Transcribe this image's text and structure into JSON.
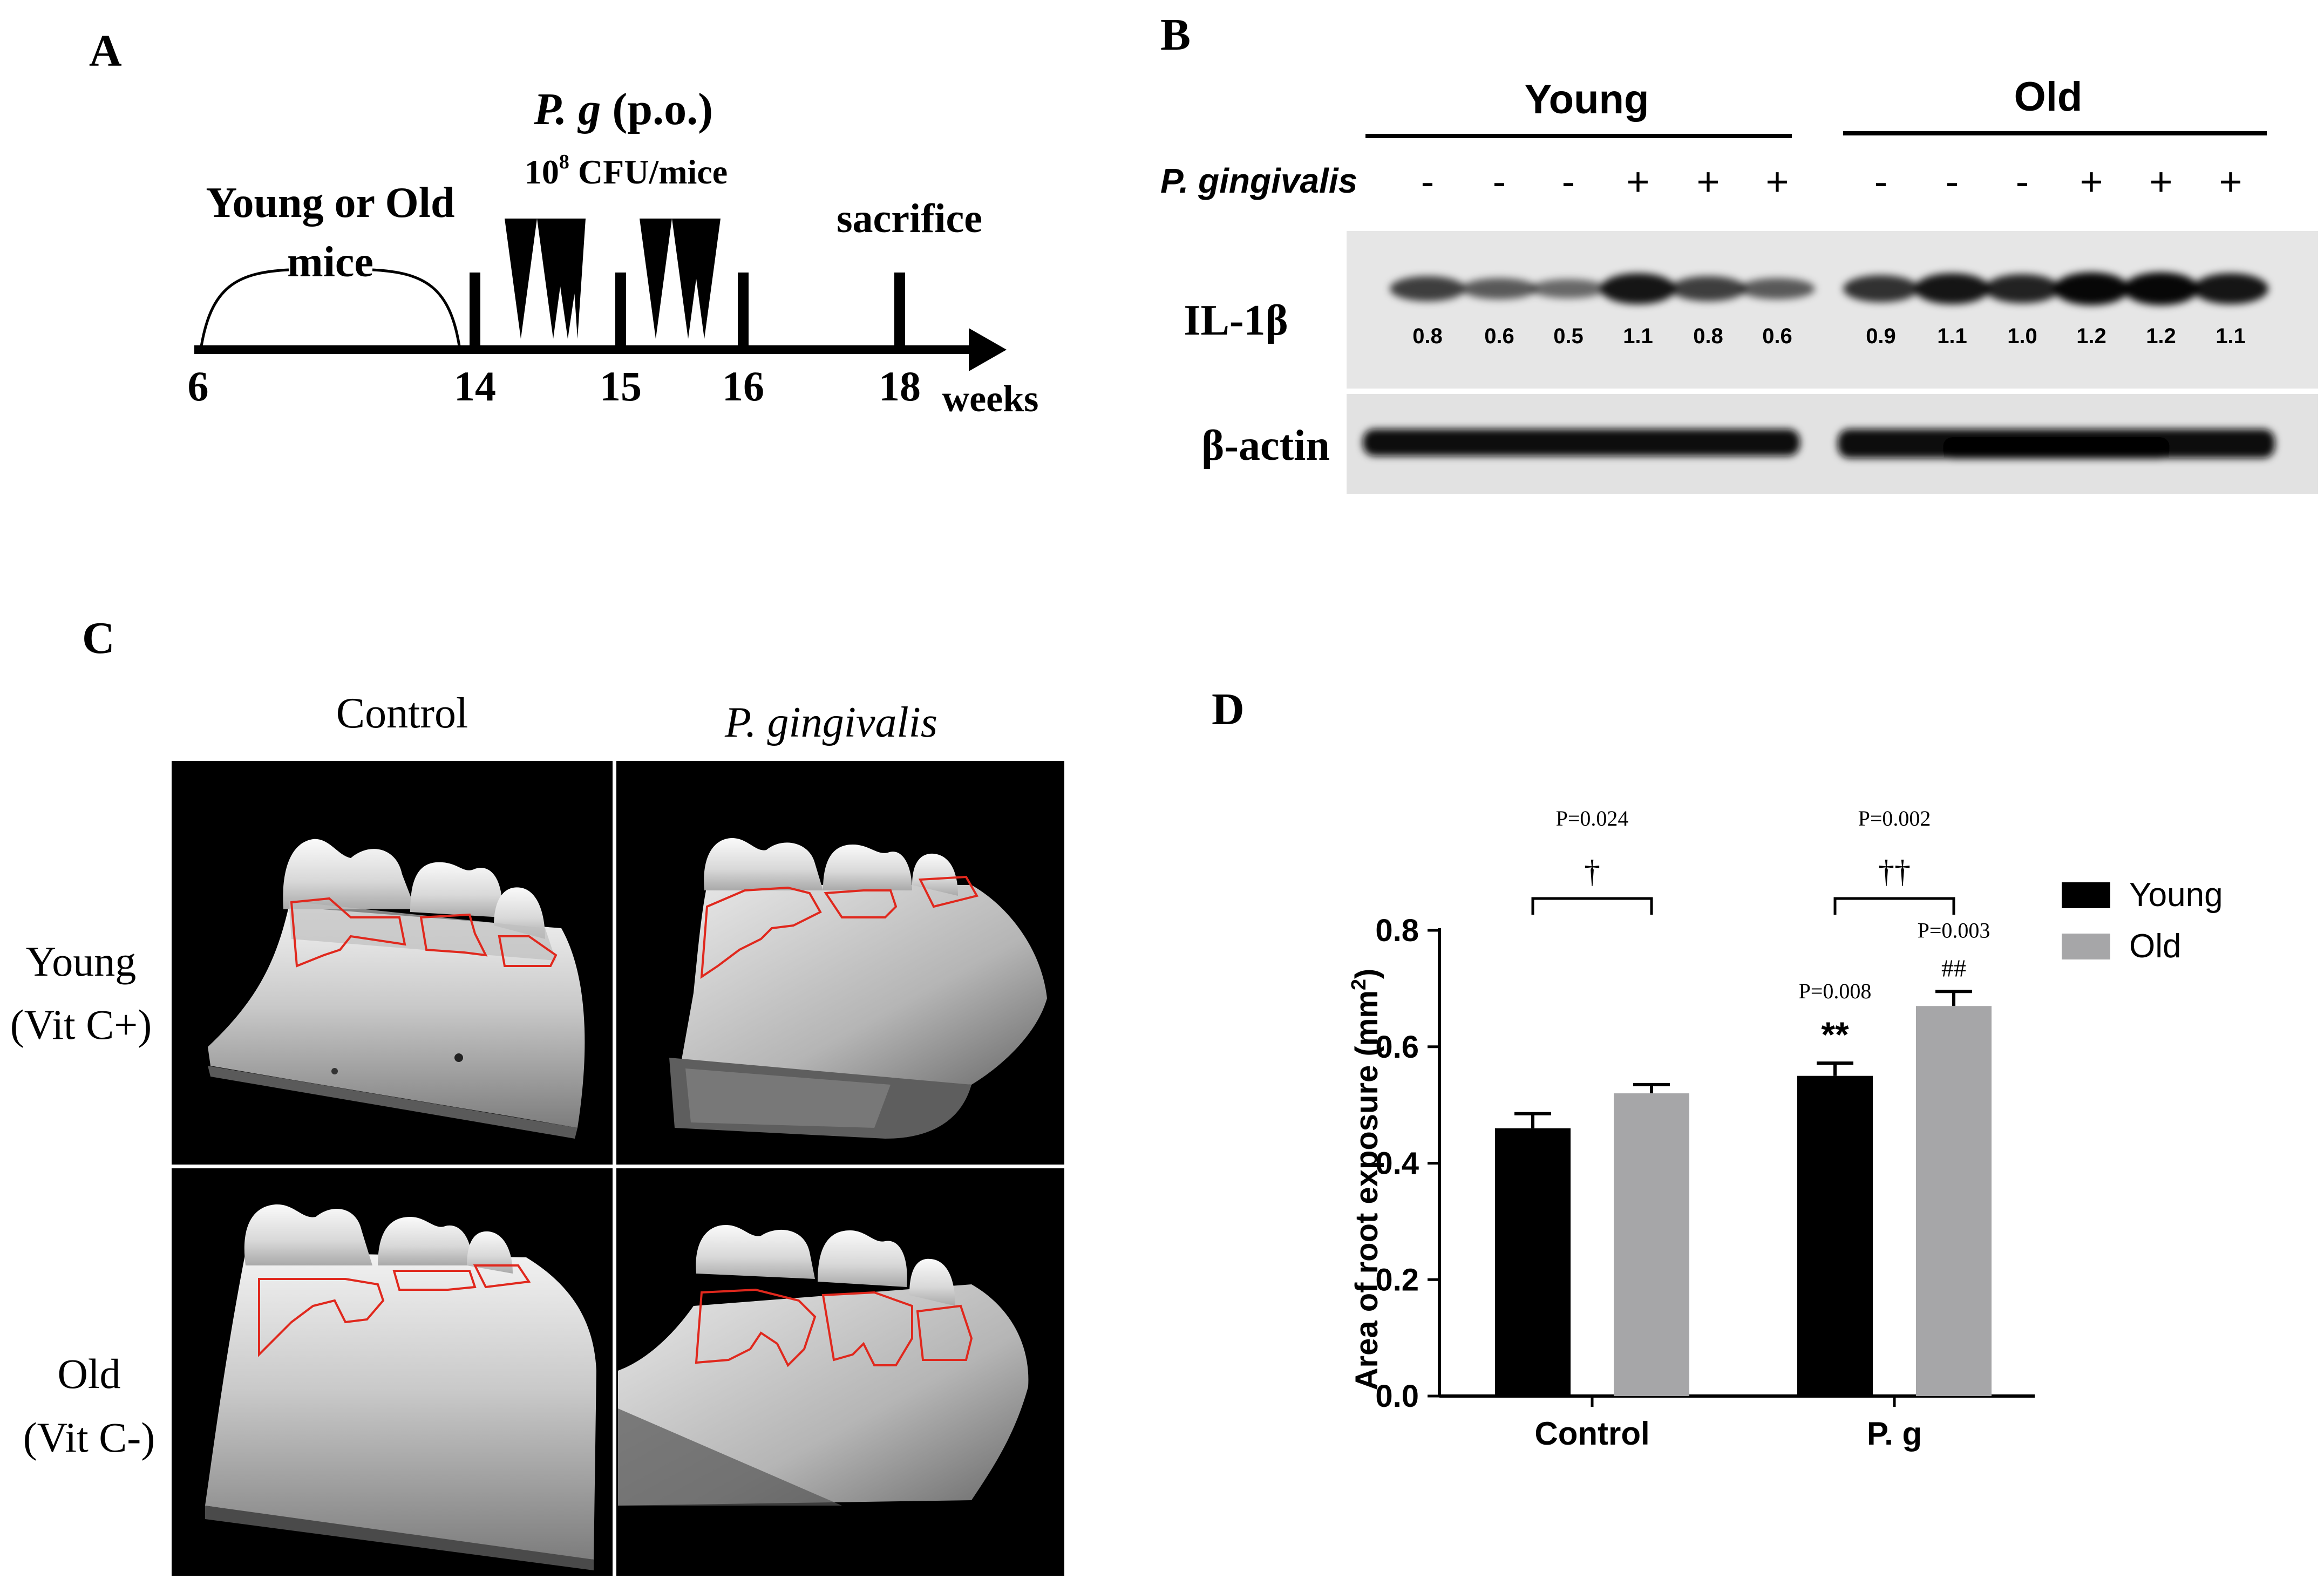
{
  "panel_a": {
    "letter": "A",
    "pg_italic": "P. g",
    "pg_route": "(p.o.)",
    "dose": "10",
    "dose_exp": "8",
    "dose_unit": "CFU/mice",
    "group_line1": "Young or Old",
    "group_line2": "mice",
    "sacrifice": "sacrifice",
    "ticks": [
      "6",
      "14",
      "15",
      "16",
      "18"
    ],
    "unit": "weeks"
  },
  "panel_b": {
    "letter": "B",
    "group_young": "Young",
    "group_old": "Old",
    "treatment_label": "P. gingivalis",
    "treatment_signs": [
      "-",
      "-",
      "-",
      "+",
      "+",
      "+",
      "-",
      "-",
      "-",
      "+",
      "+",
      "+"
    ],
    "bands": [
      {
        "label": "IL-1β",
        "values": [
          "0.8",
          "0.6",
          "0.5",
          "1.1",
          "0.8",
          "0.6",
          "0.9",
          "1.1",
          "1.0",
          "1.2",
          "1.2",
          "1.1"
        ]
      },
      {
        "label": "β-actin"
      }
    ]
  },
  "panel_c": {
    "letter": "C",
    "columns": [
      "Control",
      "P. gingivalis"
    ],
    "rows": [
      {
        "line1": "Young",
        "line2": "(Vit C+)"
      },
      {
        "line1": "Old",
        "line2": "(Vit C-)"
      }
    ]
  },
  "panel_d": {
    "letter": "D",
    "chart_data": {
      "type": "bar",
      "categories": [
        "Control",
        "P. g"
      ],
      "series": [
        {
          "name": "Young",
          "color": "#000000",
          "values": [
            0.46,
            0.55
          ],
          "errors": [
            0.025,
            0.022
          ]
        },
        {
          "name": "Old",
          "color": "#a6a6a8",
          "values": [
            0.52,
            0.67
          ],
          "errors": [
            0.015,
            0.025
          ]
        }
      ],
      "ylabel": "Area of root exposure (mm",
      "ylabel_sup": "2",
      "ylabel_end": ")",
      "ylim": [
        0,
        0.8
      ],
      "yticks": [
        "0.0",
        "0.2",
        "0.4",
        "0.6",
        "0.8"
      ],
      "legend_position": "right",
      "annotations": {
        "control_p": "P=0.024",
        "control_mark": "†",
        "pg_p": "P=0.002",
        "pg_mark": "††",
        "young_p": "P=0.008",
        "young_mark": "**",
        "old_p": "P=0.003",
        "old_mark": "##"
      }
    }
  }
}
